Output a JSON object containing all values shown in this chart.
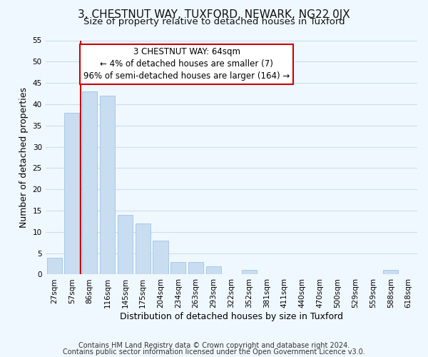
{
  "title": "3, CHESTNUT WAY, TUXFORD, NEWARK, NG22 0JX",
  "subtitle": "Size of property relative to detached houses in Tuxford",
  "xlabel": "Distribution of detached houses by size in Tuxford",
  "ylabel": "Number of detached properties",
  "bar_color": "#c8ddf0",
  "bar_edge_color": "#a8c8e8",
  "grid_color": "#c8dff0",
  "categories": [
    "27sqm",
    "57sqm",
    "86sqm",
    "116sqm",
    "145sqm",
    "175sqm",
    "204sqm",
    "234sqm",
    "263sqm",
    "293sqm",
    "322sqm",
    "352sqm",
    "381sqm",
    "411sqm",
    "440sqm",
    "470sqm",
    "500sqm",
    "529sqm",
    "559sqm",
    "588sqm",
    "618sqm"
  ],
  "values": [
    4,
    38,
    43,
    42,
    14,
    12,
    8,
    3,
    3,
    2,
    0,
    1,
    0,
    0,
    0,
    0,
    0,
    0,
    0,
    1,
    0
  ],
  "ylim": [
    0,
    55
  ],
  "yticks": [
    0,
    5,
    10,
    15,
    20,
    25,
    30,
    35,
    40,
    45,
    50,
    55
  ],
  "vline_x": 1.5,
  "vline_color": "#cc0000",
  "annotation_line1": "3 CHESTNUT WAY: 64sqm",
  "annotation_line2": "← 4% of detached houses are smaller (7)",
  "annotation_line3": "96% of semi-detached houses are larger (164) →",
  "annotation_box_color": "#ffffff",
  "annotation_box_edge": "#cc0000",
  "footer_line1": "Contains HM Land Registry data © Crown copyright and database right 2024.",
  "footer_line2": "Contains public sector information licensed under the Open Government Licence v3.0.",
  "background_color": "#f0f8ff",
  "title_fontsize": 11,
  "subtitle_fontsize": 9.5,
  "label_fontsize": 9,
  "tick_fontsize": 7.5,
  "footer_fontsize": 7,
  "annot_fontsize": 8.5
}
